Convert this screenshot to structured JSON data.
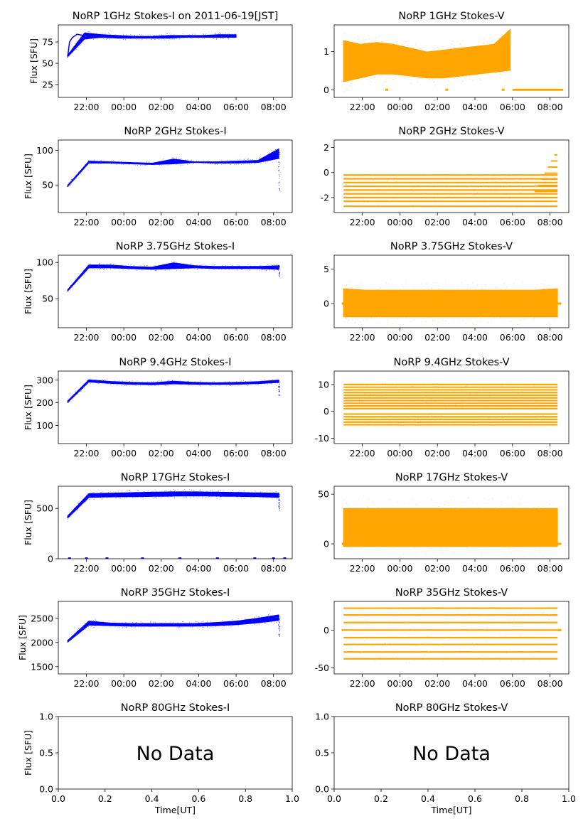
{
  "figure": {
    "no_data_text": "No Data",
    "colors": {
      "stokes_i": "#0000ff",
      "stokes_v": "#ffa500",
      "axis": "#000000"
    }
  },
  "time_ticks": [
    "22:00",
    "00:00",
    "02:00",
    "04:00",
    "06:00",
    "08:00"
  ],
  "chart_data": [
    {
      "type": "scatter",
      "title": "NoRP 1GHz Stokes-I on 2011-06-19[JST]",
      "ylabel": "Flux [SFU]",
      "xlabel": "",
      "x_range_hours": [
        20.5,
        33.0
      ],
      "ylim": [
        10,
        95
      ],
      "yticks": [
        25,
        50,
        75
      ],
      "color": "#0000ff",
      "series": [
        {
          "x": [
            21.0,
            21.1,
            21.25,
            21.5,
            22.0,
            23.0,
            24.0,
            25.0,
            26.0,
            27.0,
            28.0,
            29.0,
            29.5,
            30.0
          ],
          "y": [
            58,
            75,
            80,
            84,
            82,
            81,
            81,
            81,
            81,
            81,
            82,
            82,
            83,
            81
          ]
        }
      ],
      "band": {
        "from": 21.0,
        "to": 30.0,
        "lo": [
          57,
          78,
          80,
          79,
          79,
          79,
          79,
          80,
          80,
          80,
          80
        ],
        "hi": [
          60,
          86,
          84,
          83,
          82,
          82,
          83,
          83,
          83,
          84,
          84
        ]
      }
    },
    {
      "type": "scatter",
      "title": "NoRP 1GHz Stokes-V",
      "ylabel": "",
      "xlabel": "",
      "x_range_hours": [
        20.5,
        33.0
      ],
      "ylim": [
        -0.2,
        1.7
      ],
      "yticks": [
        0,
        1
      ],
      "color": "#ffa500",
      "band": {
        "from": 21.0,
        "to": 29.9,
        "lo": [
          0.2,
          0.3,
          0.4,
          0.4,
          0.35,
          0.3,
          0.3,
          0.35,
          0.4,
          0.45,
          0.5
        ],
        "hi": [
          1.3,
          1.2,
          1.25,
          1.2,
          1.1,
          1.0,
          1.05,
          1.1,
          1.15,
          1.2,
          1.6
        ]
      },
      "flat": [
        {
          "from": 30.0,
          "to": 32.7,
          "y": 0
        }
      ],
      "dots": [
        [
          23.3,
          0
        ],
        [
          26.5,
          0
        ],
        [
          29.5,
          0
        ]
      ]
    },
    {
      "type": "scatter",
      "title": "NoRP 2GHz Stokes-I",
      "ylabel": "Flux [SFU]",
      "xlabel": "",
      "x_range_hours": [
        20.5,
        33.0
      ],
      "ylim": [
        10,
        115
      ],
      "yticks": [
        50,
        100
      ],
      "color": "#0000ff",
      "band": {
        "from": 21.0,
        "to": 32.3,
        "lo": [
          47,
          81,
          81,
          80,
          79,
          80,
          82,
          81,
          81,
          82,
          88
        ],
        "hi": [
          50,
          85,
          84,
          83,
          82,
          88,
          84,
          84,
          85,
          86,
          103
        ]
      },
      "spikes": [
        {
          "x": 32.3,
          "lo": 42,
          "hi": 100
        }
      ]
    },
    {
      "type": "scatter",
      "title": "NoRP 2GHz Stokes-V",
      "ylabel": "",
      "xlabel": "",
      "x_range_hours": [
        20.5,
        33.0
      ],
      "ylim": [
        -3.2,
        2.6
      ],
      "yticks": [
        -2,
        0,
        2
      ],
      "color": "#ffa500",
      "stripes": {
        "from": 21.0,
        "to": 32.4,
        "levels": [
          -2.7,
          -2.3,
          -2.0,
          -1.7,
          -1.4,
          -1.1,
          -0.8,
          -0.5,
          -0.2
        ]
      },
      "ramp": {
        "from": 31.0,
        "to": 32.4,
        "y_start": -2.0,
        "y_end": 1.9
      }
    },
    {
      "type": "scatter",
      "title": "NoRP 3.75GHz Stokes-I",
      "ylabel": "Flux [SFU]",
      "xlabel": "",
      "x_range_hours": [
        20.5,
        33.0
      ],
      "ylim": [
        10,
        110
      ],
      "yticks": [
        50,
        100
      ],
      "color": "#0000ff",
      "band": {
        "from": 21.0,
        "to": 32.3,
        "lo": [
          60,
          92,
          92,
          91,
          90,
          91,
          92,
          91,
          91,
          91,
          90
        ],
        "hi": [
          63,
          97,
          97,
          95,
          94,
          100,
          96,
          95,
          95,
          95,
          96
        ]
      },
      "spikes": [
        {
          "x": 32.3,
          "lo": 80,
          "hi": 96
        }
      ]
    },
    {
      "type": "scatter",
      "title": "NoRP 3.75GHz Stokes-V",
      "ylabel": "",
      "xlabel": "",
      "x_range_hours": [
        20.5,
        33.0
      ],
      "ylim": [
        -3.5,
        7
      ],
      "yticks": [
        0,
        5
      ],
      "color": "#ffa500",
      "band": {
        "from": 21.0,
        "to": 32.4,
        "lo": [
          -2,
          -2,
          -2,
          -2,
          -2,
          -2,
          -2,
          -2,
          -2,
          -2,
          -2
        ],
        "hi": [
          2.2,
          2,
          2,
          2,
          2,
          2,
          2,
          2,
          2,
          2,
          2.2
        ]
      },
      "flat": [
        {
          "from": 20.9,
          "to": 21.0,
          "y": 0
        },
        {
          "from": 32.4,
          "to": 32.6,
          "y": 0
        }
      ]
    },
    {
      "type": "scatter",
      "title": "NoRP 9.4GHz Stokes-I",
      "ylabel": "Flux [SFU]",
      "xlabel": "",
      "x_range_hours": [
        20.5,
        33.0
      ],
      "ylim": [
        20,
        340
      ],
      "yticks": [
        100,
        200,
        300
      ],
      "color": "#0000ff",
      "band": {
        "from": 21.0,
        "to": 32.3,
        "lo": [
          200,
          290,
          284,
          280,
          278,
          282,
          280,
          279,
          280,
          283,
          288
        ],
        "hi": [
          210,
          303,
          296,
          292,
          290,
          297,
          292,
          290,
          292,
          295,
          302
        ]
      },
      "spikes": [
        {
          "x": 32.3,
          "lo": 230,
          "hi": 300
        }
      ]
    },
    {
      "type": "scatter",
      "title": "NoRP 9.4GHz Stokes-V",
      "ylabel": "",
      "xlabel": "",
      "x_range_hours": [
        20.5,
        33.0
      ],
      "ylim": [
        -12,
        15
      ],
      "yticks": [
        -10,
        0,
        10
      ],
      "color": "#ffa500",
      "stripes": {
        "from": 21.0,
        "to": 32.4,
        "levels": [
          -5,
          -4,
          -3,
          -2,
          -1,
          1,
          2,
          3,
          4,
          5,
          6,
          7,
          8,
          9,
          10
        ]
      }
    },
    {
      "type": "scatter",
      "title": "NoRP 17GHz Stokes-I",
      "ylabel": "Flux [SFU]",
      "xlabel": "",
      "x_range_hours": [
        20.5,
        33.0
      ],
      "ylim": [
        0,
        720
      ],
      "yticks": [
        0,
        500
      ],
      "color": "#0000ff",
      "band": {
        "from": 21.0,
        "to": 32.3,
        "lo": [
          400,
          605,
          610,
          612,
          615,
          618,
          620,
          618,
          615,
          612,
          605
        ],
        "hi": [
          430,
          650,
          655,
          660,
          665,
          668,
          668,
          665,
          662,
          658,
          655
        ]
      },
      "spikes": [
        {
          "x": 32.3,
          "lo": 470,
          "hi": 650
        }
      ],
      "dots": [
        [
          21.1,
          3
        ],
        [
          22.0,
          3
        ],
        [
          23.1,
          3
        ],
        [
          25.0,
          3
        ],
        [
          27.0,
          3
        ],
        [
          29.0,
          3
        ],
        [
          31.0,
          3
        ],
        [
          32.0,
          3
        ],
        [
          32.6,
          3
        ]
      ]
    },
    {
      "type": "scatter",
      "title": "NoRP 17GHz Stokes-V",
      "ylabel": "",
      "xlabel": "",
      "x_range_hours": [
        20.5,
        33.0
      ],
      "ylim": [
        -15,
        58
      ],
      "yticks": [
        0,
        50
      ],
      "color": "#ffa500",
      "band": {
        "from": 21.0,
        "to": 32.4,
        "lo": [
          -3,
          -3,
          -3,
          -3,
          -3,
          -3,
          -3,
          -3,
          -3,
          -3,
          -3
        ],
        "hi": [
          36,
          36,
          36,
          36,
          36,
          36,
          36,
          36,
          36,
          36,
          36
        ]
      },
      "flat": [
        {
          "from": 20.9,
          "to": 21.0,
          "y": 0
        },
        {
          "from": 32.4,
          "to": 32.6,
          "y": 0
        }
      ]
    },
    {
      "type": "scatter",
      "title": "NoRP 35GHz Stokes-I",
      "ylabel": "Flux [SFU]",
      "xlabel": "",
      "x_range_hours": [
        20.5,
        33.0
      ],
      "ylim": [
        1350,
        2850
      ],
      "yticks": [
        1500,
        2000,
        2500
      ],
      "color": "#0000ff",
      "band": {
        "from": 21.0,
        "to": 32.3,
        "lo": [
          2000,
          2350,
          2340,
          2330,
          2330,
          2330,
          2330,
          2340,
          2360,
          2400,
          2450
        ],
        "hi": [
          2050,
          2450,
          2410,
          2400,
          2400,
          2400,
          2400,
          2420,
          2450,
          2510,
          2580
        ]
      },
      "spikes": [
        {
          "x": 32.3,
          "lo": 2100,
          "hi": 2560
        }
      ]
    },
    {
      "type": "scatter",
      "title": "NoRP 35GHz Stokes-V",
      "ylabel": "",
      "xlabel": "",
      "x_range_hours": [
        20.5,
        33.0
      ],
      "ylim": [
        -58,
        38
      ],
      "yticks": [
        -50,
        0
      ],
      "color": "#ffa500",
      "stripes": {
        "from": 21.0,
        "to": 32.4,
        "levels": [
          -38,
          -29,
          -19,
          -10,
          0,
          10,
          20,
          29
        ]
      },
      "flat": [
        {
          "from": 20.9,
          "to": 21.0,
          "y": 0
        },
        {
          "from": 32.4,
          "to": 32.6,
          "y": 0
        }
      ]
    },
    {
      "type": "scatter",
      "title": "NoRP 80GHz Stokes-I",
      "ylabel": "Flux [SFU]",
      "xlabel": "Time[UT]",
      "xlim": [
        0,
        1
      ],
      "ylim": [
        0,
        1
      ],
      "xticks": [
        "0.0",
        "0.2",
        "0.4",
        "0.6",
        "0.8",
        "1.0"
      ],
      "yticks": [
        "0.0",
        "0.5",
        "1.0"
      ],
      "no_data": true
    },
    {
      "type": "scatter",
      "title": "NoRP 80GHz Stokes-V",
      "ylabel": "",
      "xlabel": "Time[UT]",
      "xlim": [
        0,
        1
      ],
      "ylim": [
        0,
        1
      ],
      "xticks": [
        "0.0",
        "0.2",
        "0.4",
        "0.6",
        "0.8",
        "1.0"
      ],
      "yticks": [
        "0.0",
        "0.5",
        "1.0"
      ],
      "no_data": true
    }
  ]
}
